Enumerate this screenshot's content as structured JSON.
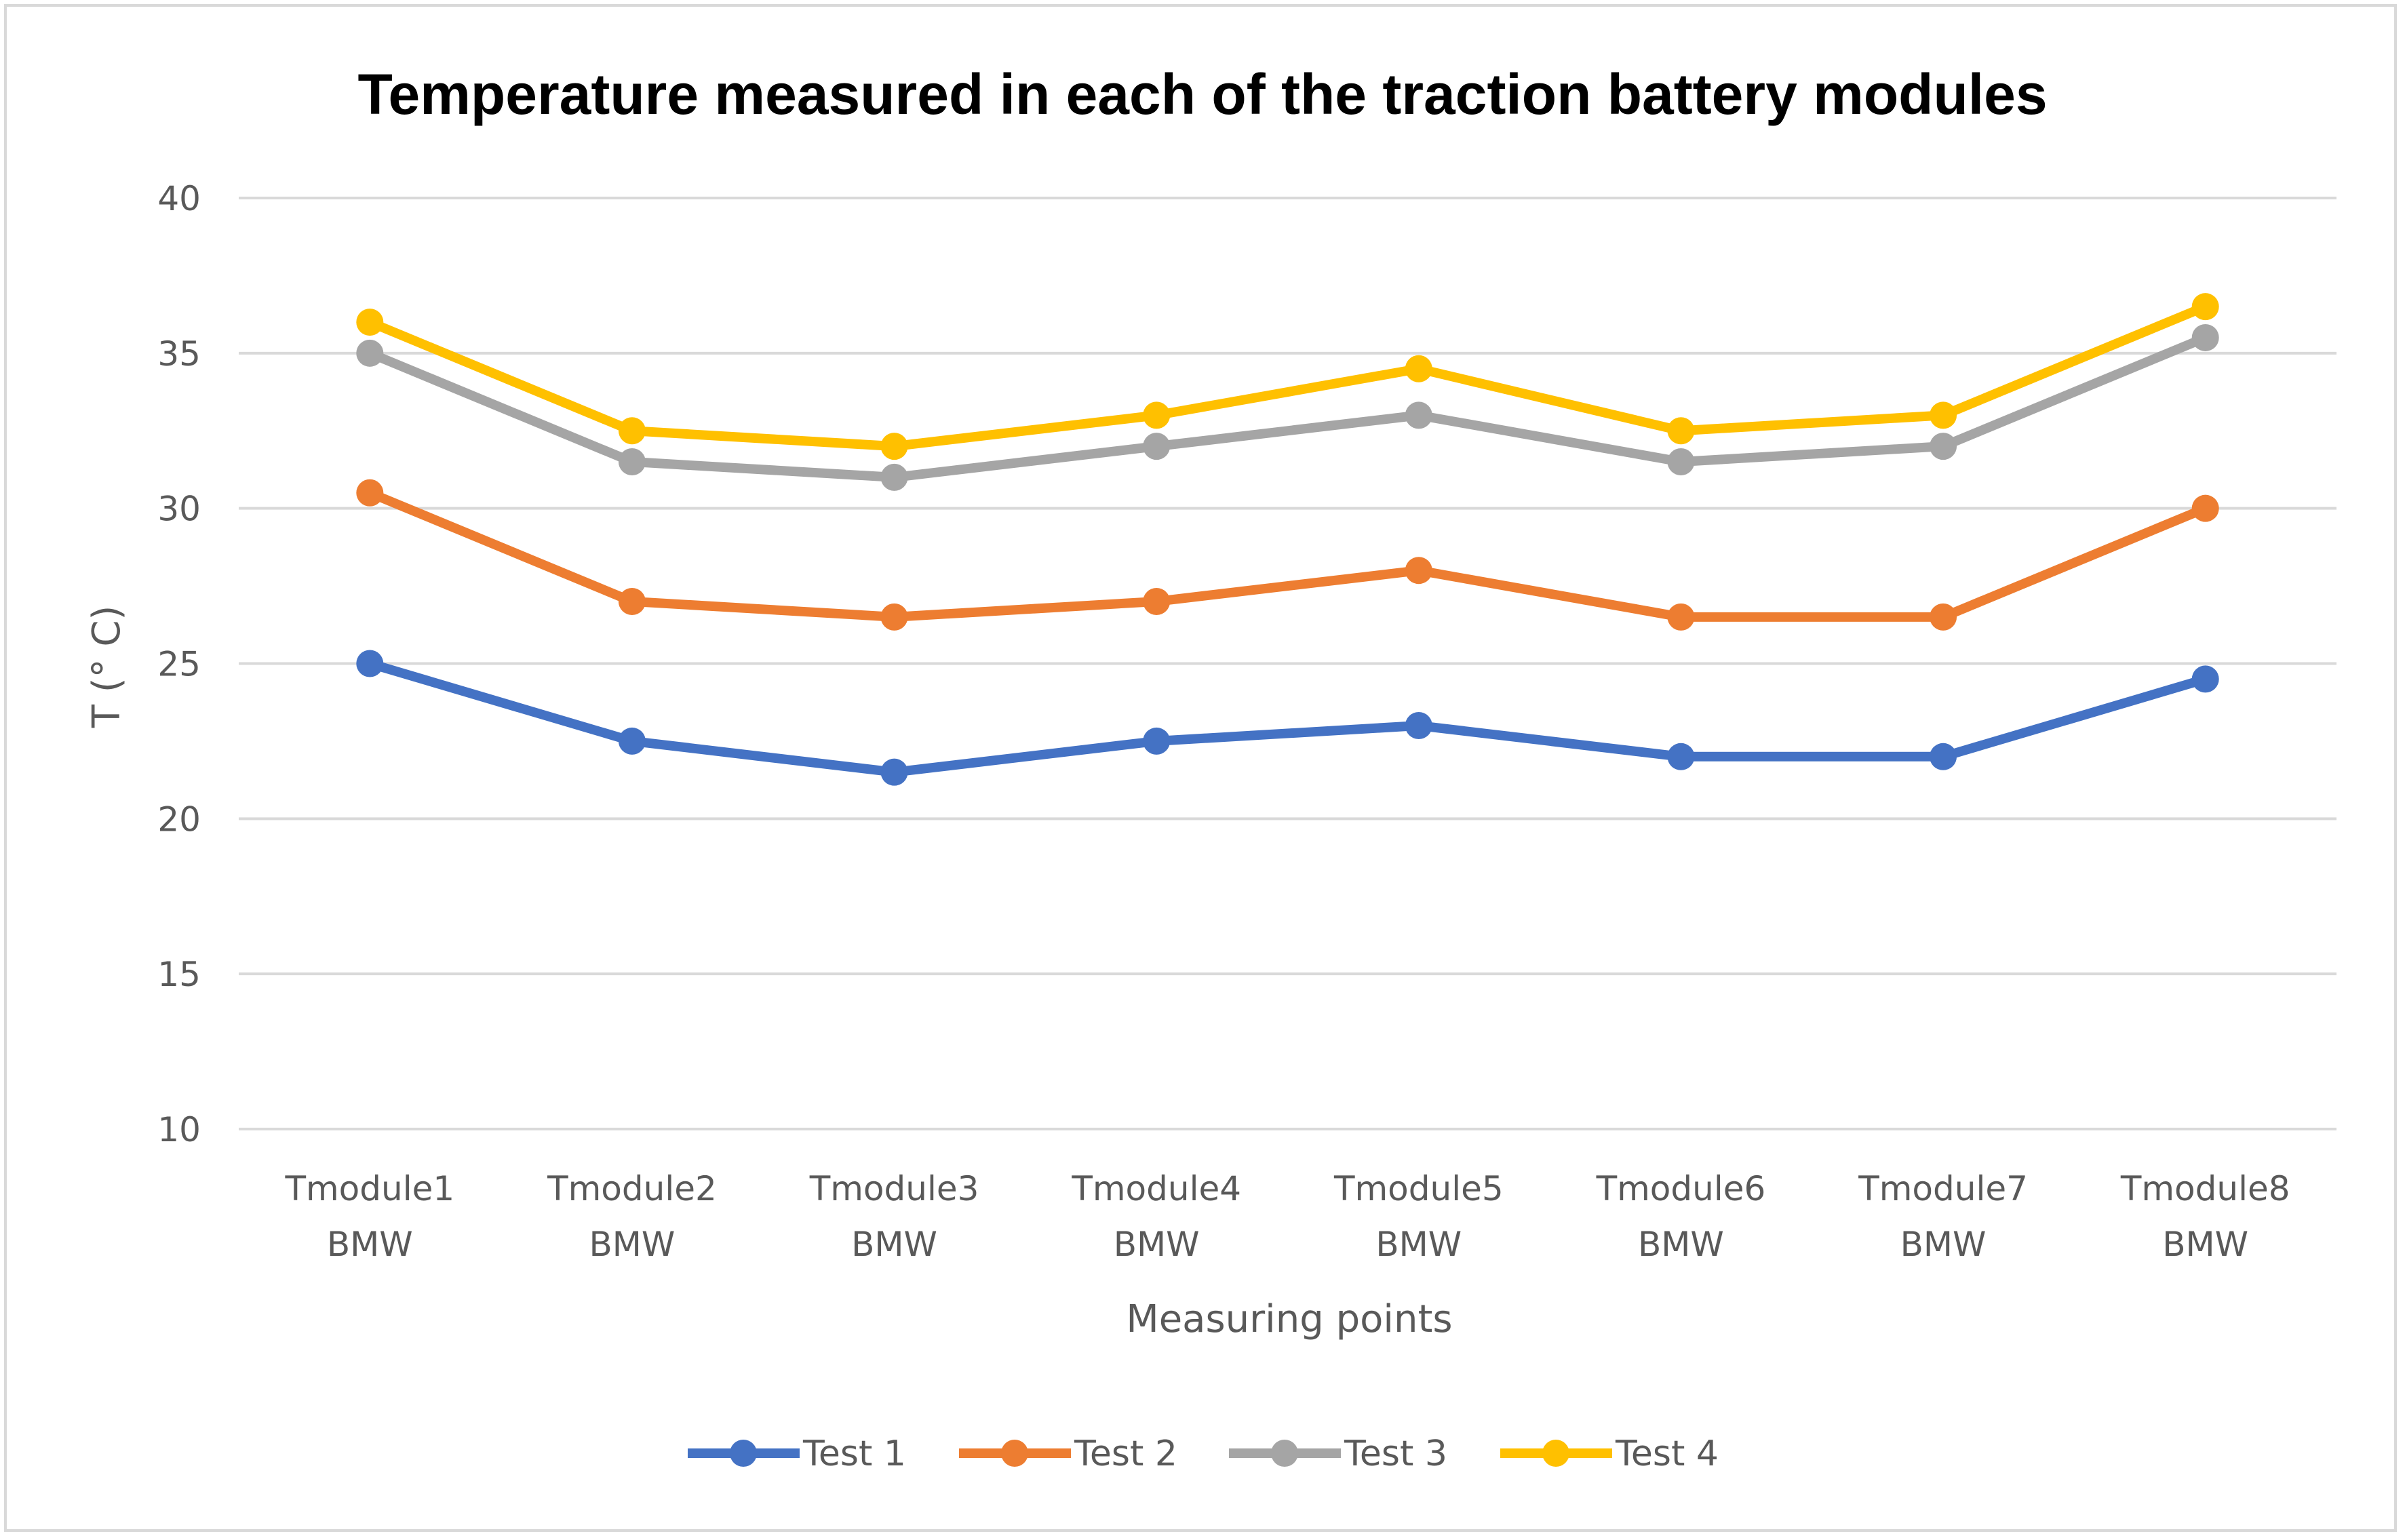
{
  "chart_data": {
    "type": "line",
    "title": "Temperature measured in each of the traction battery modules",
    "xlabel": "Measuring points",
    "ylabel": "T (° C)",
    "ylim": [
      10,
      40
    ],
    "yticks": [
      "10",
      "15",
      "20",
      "25",
      "30",
      "35",
      "40"
    ],
    "ytick_values": [
      10,
      15,
      20,
      25,
      30,
      35,
      40
    ],
    "grid": true,
    "legend_position": "bottom",
    "categories": [
      [
        "Tmodule1",
        "BMW"
      ],
      [
        "Tmodule2",
        "BMW"
      ],
      [
        "Tmodule3",
        "BMW"
      ],
      [
        "Tmodule4",
        "BMW"
      ],
      [
        "Tmodule5",
        "BMW"
      ],
      [
        "Tmodule6",
        "BMW"
      ],
      [
        "Tmodule7",
        "BMW"
      ],
      [
        "Tmodule8",
        "BMW"
      ]
    ],
    "series": [
      {
        "name": "Test 1",
        "color": "#4472c4",
        "values": [
          25,
          22.5,
          21.5,
          22.5,
          23,
          22,
          22,
          24.5
        ]
      },
      {
        "name": "Test 2",
        "color": "#ed7d31",
        "values": [
          30.5,
          27,
          26.5,
          27,
          28,
          26.5,
          26.5,
          30
        ]
      },
      {
        "name": "Test 3",
        "color": "#a5a5a5",
        "values": [
          35,
          31.5,
          31,
          32,
          33,
          31.5,
          32,
          35.5
        ]
      },
      {
        "name": "Test 4",
        "color": "#ffc000",
        "values": [
          36,
          32.5,
          32,
          33,
          34.5,
          32.5,
          33,
          36.5
        ]
      }
    ]
  }
}
